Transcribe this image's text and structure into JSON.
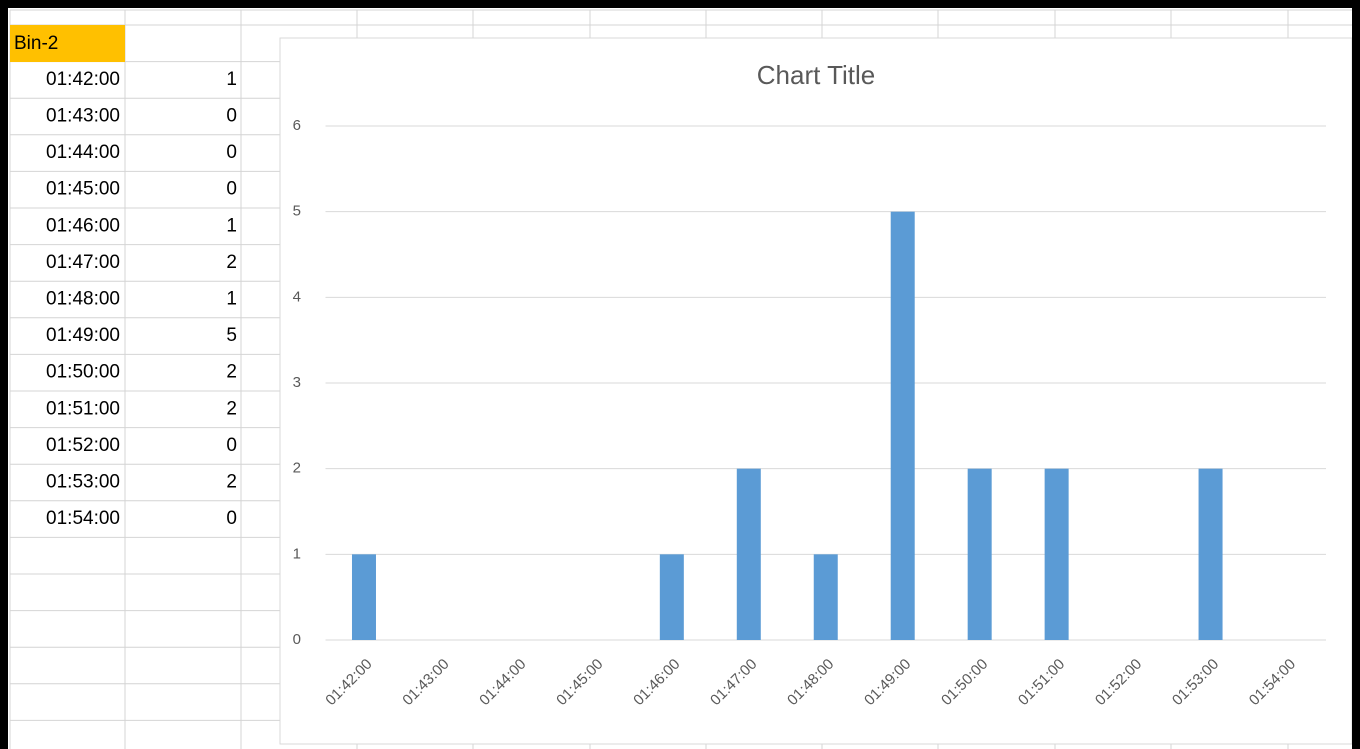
{
  "table_header": "Bin-2",
  "chart_data": {
    "type": "bar",
    "title": "Chart Title",
    "categories": [
      "01:42:00",
      "01:43:00",
      "01:44:00",
      "01:45:00",
      "01:46:00",
      "01:47:00",
      "01:48:00",
      "01:49:00",
      "01:50:00",
      "01:51:00",
      "01:52:00",
      "01:53:00",
      "01:54:00"
    ],
    "values": [
      1,
      0,
      0,
      0,
      1,
      2,
      1,
      5,
      2,
      2,
      0,
      2,
      0
    ],
    "color": "#5b9bd5",
    "ylim": [
      0,
      6
    ],
    "yticks": [
      0,
      1,
      2,
      3,
      4,
      5,
      6
    ],
    "grid": true
  }
}
